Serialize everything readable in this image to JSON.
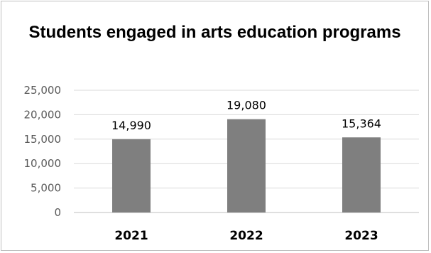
{
  "chart_data": {
    "type": "bar",
    "title": "Students engaged in arts education programs",
    "categories": [
      "2021",
      "2022",
      "2023"
    ],
    "values": [
      14990,
      19080,
      15364
    ],
    "data_labels": [
      "14,990",
      "19,080",
      "15,364"
    ],
    "y_ticks": [
      "0",
      "5,000",
      "10,000",
      "15,000",
      "20,000",
      "25,000"
    ],
    "ylim": [
      0,
      25000
    ],
    "grid": true,
    "legend": "none",
    "bar_color": "#7f7f7f"
  }
}
